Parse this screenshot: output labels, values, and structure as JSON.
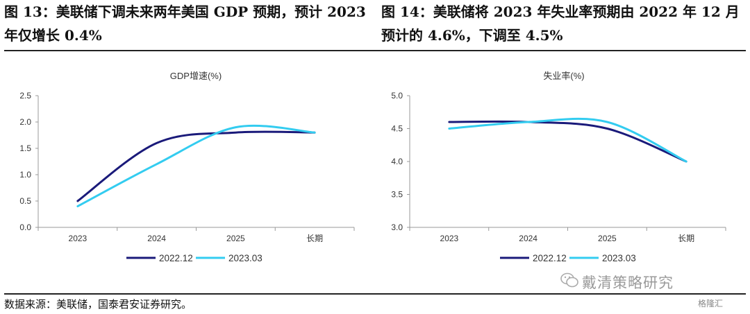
{
  "captions": {
    "left": "图 13：美联储下调未来两年美国 GDP 预期，预计 2023 年仅增长 0.4%",
    "right": "图 14：美联储将 2023 年失业率预期由 2022 年 12 月预计的 4.6%，下调至 4.5%"
  },
  "source": "数据来源：美联储，国泰君安证券研究。",
  "watermark": "戴清策略研究",
  "brand": "格隆汇",
  "colors": {
    "series_2022": "#1a1a7a",
    "series_2023": "#33ccf0",
    "axis": "#999999"
  },
  "chart_data": [
    {
      "type": "line",
      "title": "GDP增速(%)",
      "categories": [
        "2023",
        "2024",
        "2025",
        "长期"
      ],
      "series": [
        {
          "name": "2022.12",
          "values": [
            0.5,
            1.6,
            1.8,
            1.8
          ]
        },
        {
          "name": "2023.03",
          "values": [
            0.4,
            1.2,
            1.9,
            1.8
          ]
        }
      ],
      "ylim": [
        0,
        2.5
      ],
      "yticks": [
        "0.0",
        "0.5",
        "1.0",
        "1.5",
        "2.0",
        "2.5"
      ],
      "grid": false,
      "legend": "bottom"
    },
    {
      "type": "line",
      "title": "失业率(%)",
      "categories": [
        "2023",
        "2024",
        "2025",
        "长期"
      ],
      "series": [
        {
          "name": "2022.12",
          "values": [
            4.6,
            4.6,
            4.5,
            4.0
          ]
        },
        {
          "name": "2023.03",
          "values": [
            4.5,
            4.6,
            4.6,
            4.0
          ]
        }
      ],
      "ylim": [
        3.0,
        5.0
      ],
      "yticks": [
        "3.0",
        "3.5",
        "4.0",
        "4.5",
        "5.0"
      ],
      "grid": false,
      "legend": "bottom"
    }
  ]
}
